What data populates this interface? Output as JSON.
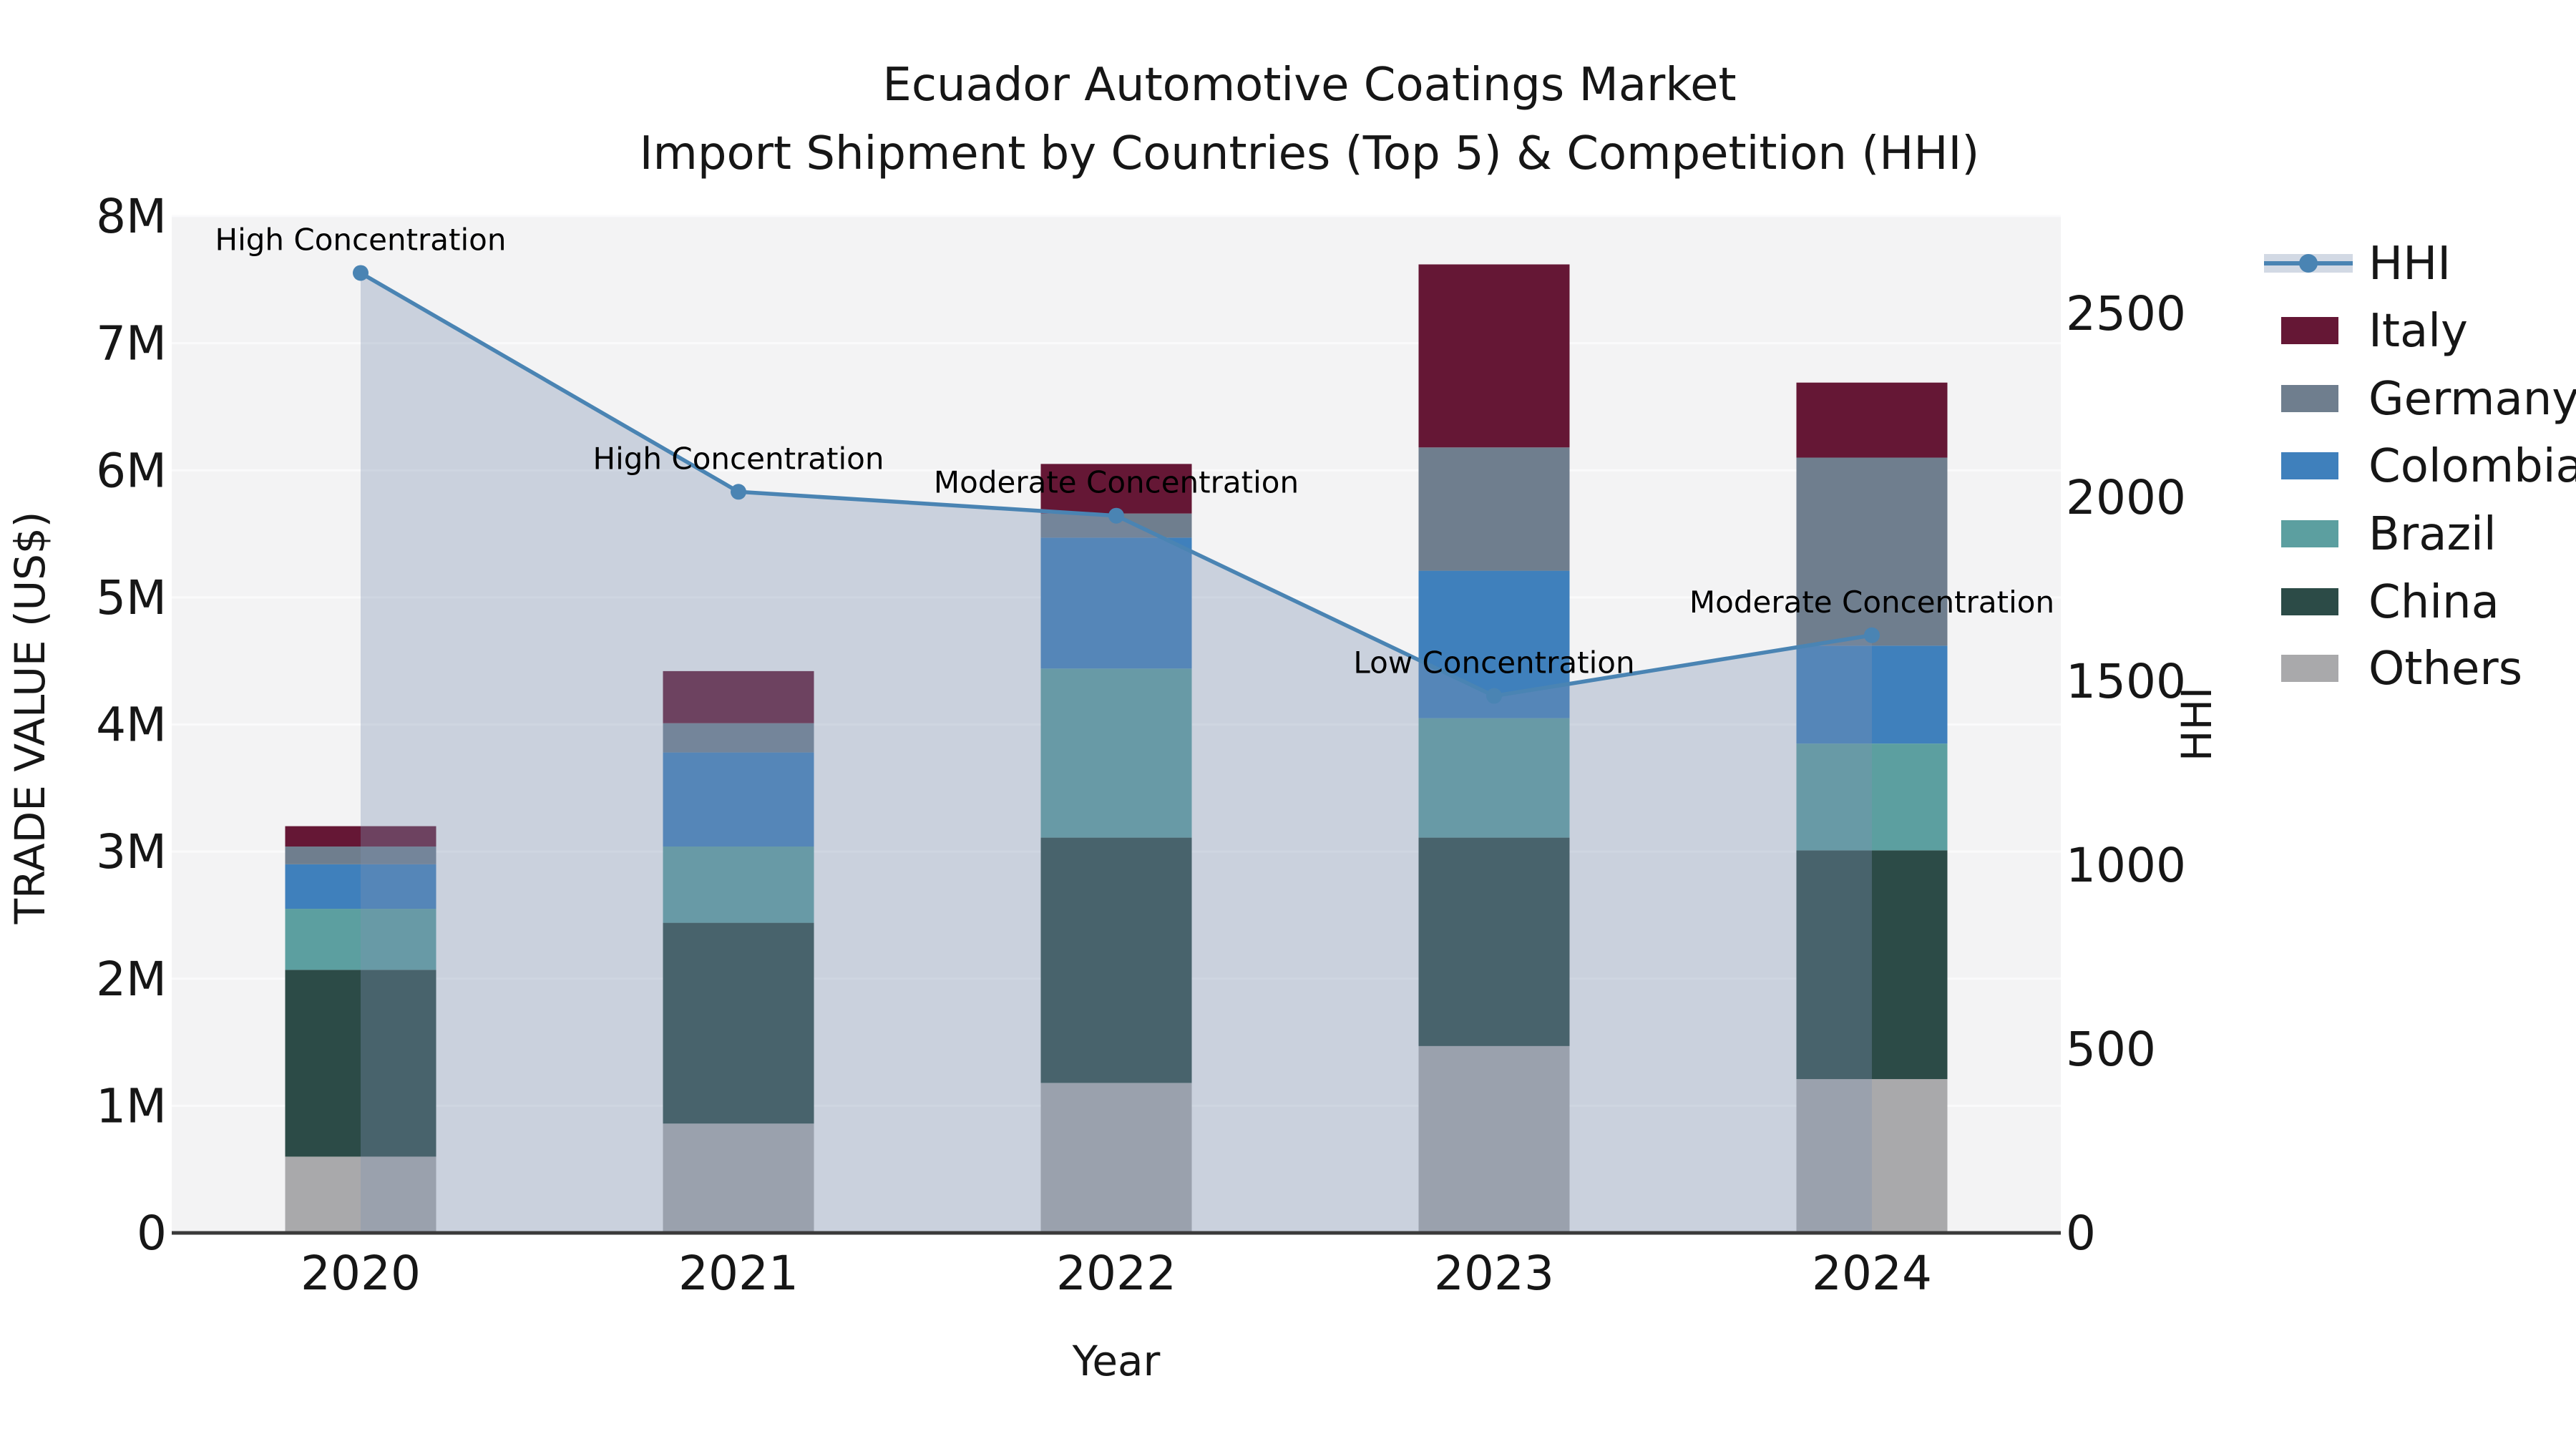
{
  "title": {
    "line1": "Ecuador Automotive Coatings Market",
    "line2": "Import Shipment by Countries (Top 5) & Competition (HHI)"
  },
  "axes": {
    "left": {
      "label": "TRADE VALUE (US$)",
      "ticks": [
        "0",
        "1M",
        "2M",
        "3M",
        "4M",
        "5M",
        "6M",
        "7M",
        "8M"
      ]
    },
    "right": {
      "label": "HHI",
      "ticks": [
        "0",
        "500",
        "1000",
        "1500",
        "2000",
        "2500"
      ]
    },
    "x": {
      "label": "Year",
      "ticks": [
        "2020",
        "2021",
        "2022",
        "2023",
        "2024"
      ]
    }
  },
  "legend": {
    "items": [
      {
        "label": "HHI",
        "type": "line",
        "color": "#4A84B3"
      },
      {
        "label": "Italy",
        "type": "patch",
        "color": "#651735"
      },
      {
        "label": "Germany",
        "type": "patch",
        "color": "#6F7E8E"
      },
      {
        "label": "Colombia",
        "type": "patch",
        "color": "#3F80BC"
      },
      {
        "label": "Brazil",
        "type": "patch",
        "color": "#5C9FA0"
      },
      {
        "label": "China",
        "type": "patch",
        "color": "#2C4B47"
      },
      {
        "label": "Others",
        "type": "patch",
        "color": "#A9A9AB"
      }
    ]
  },
  "colors": {
    "plot_bg": "#F3F3F4",
    "gridline": "#FAFAFB",
    "spine": "#3A3A3A",
    "hhi_line": "#4A84B3",
    "hhi_fill": "rgba(127,146,179,0.35)",
    "text": "#161616"
  },
  "chart_data": {
    "type": "combo: stacked bar (left axis, US$) + line (right axis, HHI)",
    "categories": [
      "2020",
      "2021",
      "2022",
      "2023",
      "2024"
    ],
    "value_unit": "US$ millions",
    "stack_order_bottom_to_top": [
      "Others",
      "China",
      "Brazil",
      "Colombia",
      "Germany",
      "Italy"
    ],
    "series": [
      {
        "name": "Others",
        "color": "#A9A9AB",
        "values": [
          0.6,
          0.86,
          1.18,
          1.47,
          1.21
        ]
      },
      {
        "name": "China",
        "color": "#2C4B47",
        "values": [
          1.47,
          1.58,
          1.93,
          1.64,
          1.8
        ]
      },
      {
        "name": "Brazil",
        "color": "#5C9FA0",
        "values": [
          0.48,
          0.6,
          1.33,
          0.94,
          0.84
        ]
      },
      {
        "name": "Colombia",
        "color": "#3F80BC",
        "values": [
          0.35,
          0.74,
          1.03,
          1.16,
          0.77
        ]
      },
      {
        "name": "Germany",
        "color": "#6F7E8E",
        "values": [
          0.14,
          0.23,
          0.19,
          0.97,
          1.48
        ]
      },
      {
        "name": "Italy",
        "color": "#651735",
        "values": [
          0.16,
          0.41,
          0.39,
          1.44,
          0.59
        ]
      }
    ],
    "bar_totals": [
      3.2,
      4.42,
      6.05,
      7.62,
      6.69
    ],
    "hhi": {
      "name": "HHI",
      "axis": "right",
      "values": [
        2610,
        2015,
        1950,
        1460,
        1625
      ],
      "has_area_fill": true
    },
    "annotations": [
      {
        "category": "2020",
        "label": "High Concentration"
      },
      {
        "category": "2021",
        "label": "High Concentration"
      },
      {
        "category": "2022",
        "label": "Moderate Concentration"
      },
      {
        "category": "2023",
        "label": "Low Concentration"
      },
      {
        "category": "2024",
        "label": "Moderate Concentration"
      }
    ],
    "ylim_left": [
      0,
      8000000
    ],
    "ylim_right": [
      0,
      2765
    ],
    "grid": "horizontal",
    "legend_position": "right-outside-top",
    "title": "Ecuador Automotive Coatings Market — Import Shipment by Countries (Top 5) & Competition (HHI)",
    "xlabel": "Year",
    "ylabel_left": "TRADE VALUE (US$)",
    "ylabel_right": "HHI"
  }
}
